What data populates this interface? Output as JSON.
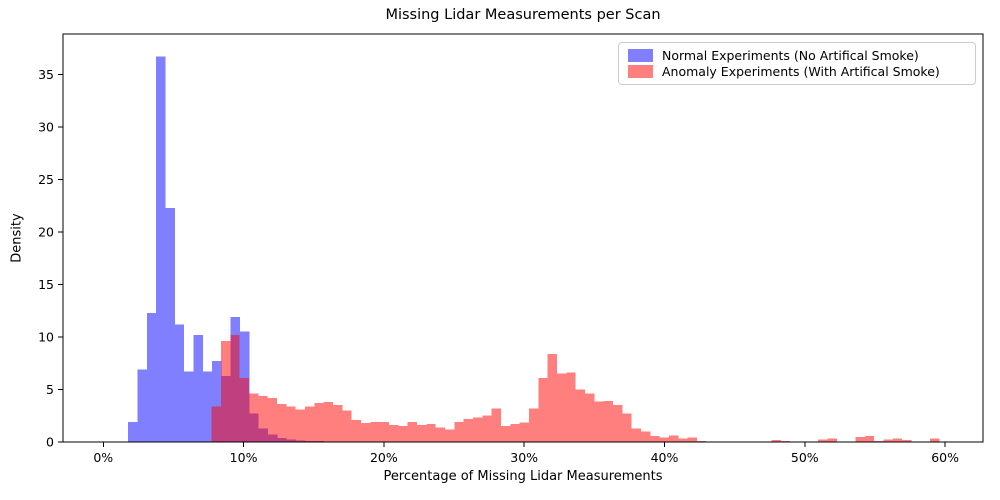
{
  "title": "Missing Lidar Measurements per Scan",
  "xlabel": "Percentage of Missing Lidar Measurements",
  "ylabel": "Density",
  "legend": {
    "items": [
      {
        "label": "Normal Experiments (No Artifical Smoke)",
        "color": "#0000ff",
        "opacity": 0.5
      },
      {
        "label": "Anomaly Experiments (With Artifical Smoke)",
        "color": "#ff0000",
        "opacity": 0.5
      }
    ]
  },
  "chart_data": {
    "type": "histogram",
    "title": "Missing Lidar Measurements per Scan",
    "xlabel": "Percentage of Missing Lidar Measurements",
    "ylabel": "Density",
    "legend_position": "upper right",
    "grid": false,
    "xlim_percent": [
      -2.87,
      62.7
    ],
    "ylim_density": [
      0,
      38.84
    ],
    "x_tick_percents": [
      0,
      10,
      20,
      30,
      40,
      50,
      60
    ],
    "x_tick_labels": [
      "0%",
      "10%",
      "20%",
      "30%",
      "40%",
      "50%",
      "60%"
    ],
    "y_ticks": [
      0,
      5,
      10,
      15,
      20,
      25,
      30,
      35
    ],
    "bin_width_percent": 0.665,
    "series": [
      {
        "name": "Normal Experiments (No Artifical Smoke)",
        "color": "#0000ff",
        "opacity": 0.5,
        "start_percent": 1.77,
        "densities": [
          1.9,
          6.9,
          12.3,
          36.7,
          22.3,
          11.2,
          6.7,
          10.2,
          6.7,
          7.7,
          6.3,
          11.9,
          10.5,
          2.7,
          1.3,
          0.7,
          0.4,
          0.25,
          0.15,
          0.1,
          0.08,
          0.05
        ]
      },
      {
        "name": "Anomaly Experiments (With Artifical Smoke)",
        "color": "#ff0000",
        "opacity": 0.5,
        "start_percent": 7.73,
        "densities": [
          3.4,
          9.6,
          10.2,
          6.1,
          4.6,
          4.4,
          4.2,
          3.6,
          3.4,
          3.1,
          3.4,
          3.7,
          3.8,
          3.5,
          3.0,
          2.1,
          1.8,
          1.9,
          1.9,
          1.6,
          1.5,
          1.9,
          1.6,
          1.7,
          1.4,
          1.2,
          1.9,
          2.2,
          2.35,
          2.5,
          3.2,
          1.5,
          1.7,
          1.85,
          3.2,
          6.1,
          8.4,
          6.5,
          6.6,
          5.0,
          4.6,
          3.85,
          3.9,
          3.5,
          2.7,
          1.3,
          1.0,
          0.57,
          0.44,
          0.63,
          0.35,
          0.44,
          0.1,
          0.05,
          0.05,
          0.02,
          0.02,
          0.02,
          0.02,
          0.02,
          0.19,
          0.1,
          0.02,
          0.02,
          0.05,
          0.25,
          0.35,
          0.05,
          0.05,
          0.5,
          0.57,
          0.1,
          0.25,
          0.35,
          0.19,
          0.05,
          0.05,
          0.35
        ]
      }
    ]
  }
}
